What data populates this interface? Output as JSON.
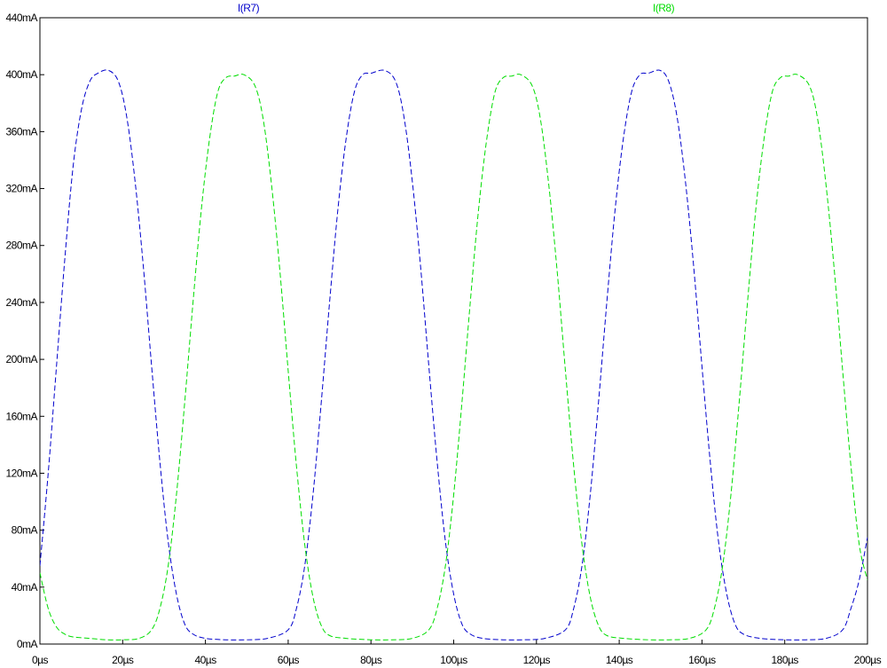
{
  "chart_data": {
    "type": "line",
    "x_unit": "µs",
    "y_unit": "mA",
    "xlim": [
      0,
      200
    ],
    "ylim": [
      0,
      440
    ],
    "x_ticks": [
      0,
      20,
      40,
      60,
      80,
      100,
      120,
      140,
      160,
      180,
      200
    ],
    "x_tick_labels": [
      "0µs",
      "20µs",
      "40µs",
      "60µs",
      "80µs",
      "100µs",
      "120µs",
      "140µs",
      "160µs",
      "180µs",
      "200µs"
    ],
    "y_ticks": [
      0,
      40,
      80,
      120,
      160,
      200,
      240,
      280,
      320,
      360,
      400,
      440
    ],
    "y_tick_labels": [
      "0mA",
      "40mA",
      "80mA",
      "120mA",
      "160mA",
      "200mA",
      "240mA",
      "280mA",
      "320mA",
      "360mA",
      "400mA",
      "440mA"
    ],
    "grid": false,
    "legend_placement": "top",
    "series": [
      {
        "name": "I(R7)",
        "color": "#0000cc",
        "dash": true,
        "x": [
          0,
          2,
          4,
          6,
          8,
          10,
          12,
          14,
          16.6,
          19,
          21,
          23,
          25,
          27,
          29,
          31,
          33,
          35,
          37,
          40,
          45,
          50,
          55,
          60,
          62,
          64,
          66,
          68,
          70,
          72,
          74,
          76,
          78,
          80,
          83.3,
          86,
          88,
          90,
          92,
          94,
          96,
          98,
          100,
          102,
          104,
          107,
          112,
          117,
          122,
          127,
          129,
          131,
          133,
          135,
          137,
          139,
          141,
          143,
          145,
          147,
          149.9,
          152,
          154,
          156,
          158,
          160,
          162,
          164,
          166,
          168,
          170,
          174,
          180,
          185,
          190,
          194,
          196,
          198,
          200
        ],
        "y": [
          55,
          120,
          195,
          270,
          335,
          375,
          395,
          401,
          403,
          395,
          370,
          325,
          265,
          195,
          128,
          72,
          35,
          14,
          7,
          4,
          3,
          3,
          4,
          10,
          25,
          55,
          105,
          170,
          240,
          305,
          355,
          388,
          400,
          401,
          403,
          395,
          370,
          325,
          265,
          195,
          128,
          72,
          35,
          14,
          7,
          4,
          3,
          3,
          4,
          10,
          25,
          55,
          105,
          170,
          240,
          305,
          355,
          388,
          400,
          401,
          403,
          395,
          370,
          325,
          265,
          195,
          128,
          72,
          35,
          14,
          7,
          4,
          3,
          3,
          4,
          10,
          25,
          45,
          75
        ]
      },
      {
        "name": "I(R8)",
        "color": "#00dd00",
        "dash": true,
        "x": [
          0,
          2,
          4,
          6,
          8,
          12,
          16,
          20,
          24,
          27,
          29,
          31,
          33,
          35,
          37,
          39,
          41,
          43,
          45,
          47,
          49.3,
          52,
          54,
          56,
          58,
          60,
          62,
          64,
          66,
          68,
          70,
          74,
          80,
          85,
          90,
          94,
          96,
          98,
          100,
          102,
          104,
          106,
          108,
          110,
          112,
          114,
          116.2,
          119,
          121,
          123,
          125,
          127,
          129,
          131,
          133,
          135,
          137,
          141,
          147,
          152,
          157,
          161,
          163,
          165,
          167,
          169,
          171,
          173,
          175,
          177,
          179,
          181,
          183.1,
          186,
          188,
          190,
          192,
          194,
          196,
          198,
          200
        ],
        "y": [
          50,
          25,
          12,
          7,
          5,
          4,
          3,
          3,
          4,
          10,
          25,
          55,
          105,
          170,
          240,
          305,
          355,
          388,
          398,
          399,
          400,
          392,
          368,
          322,
          262,
          192,
          125,
          70,
          33,
          13,
          6,
          4,
          3,
          3,
          4,
          10,
          25,
          55,
          105,
          170,
          240,
          305,
          355,
          388,
          398,
          399,
          400,
          392,
          368,
          322,
          262,
          192,
          125,
          70,
          33,
          13,
          6,
          4,
          3,
          3,
          4,
          10,
          25,
          55,
          105,
          170,
          240,
          305,
          355,
          388,
          398,
          399,
          400,
          392,
          368,
          322,
          262,
          192,
          125,
          70,
          45
        ]
      }
    ]
  }
}
